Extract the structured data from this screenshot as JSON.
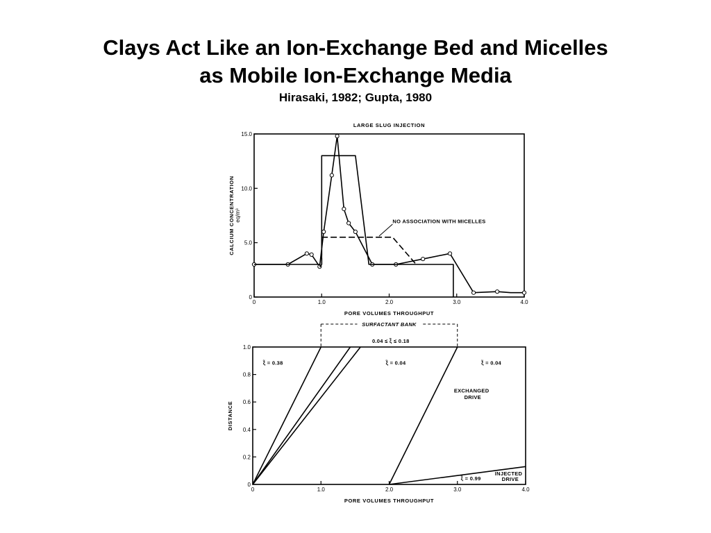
{
  "slide": {
    "title_line1": "Clays Act Like an Ion-Exchange Bed and Micelles",
    "title_line2": "as Mobile Ion-Exchange Media",
    "citation": "Hirasaki, 1982; Gupta, 1980"
  },
  "chart_data": [
    {
      "type": "line",
      "title": "LARGE SLUG INJECTION",
      "xlabel": "PORE VOLUMES THROUGHPUT",
      "ylabel": "CALCIUM CONCENTRATION",
      "yunit": "eq/m³",
      "xlim": [
        0,
        4.0
      ],
      "ylim": [
        0,
        15.0
      ],
      "xticks": [
        0,
        1.0,
        2.0,
        3.0,
        4.0
      ],
      "xtick_labels": [
        "0",
        "1.0",
        "2.0",
        "3.0",
        "4.0"
      ],
      "yticks": [
        0,
        5.0,
        10.0,
        15.0
      ],
      "ytick_labels": [
        "0",
        "5.0",
        "10.0",
        "15.0"
      ],
      "grid": false,
      "series": [
        {
          "style": "solid-markers",
          "x": [
            0,
            0.5,
            0.78,
            0.85,
            0.97,
            1.03,
            1.15,
            1.23,
            1.33,
            1.4,
            1.5,
            1.75,
            2.1,
            2.5,
            2.9,
            3.25,
            3.6,
            3.8,
            4.0
          ],
          "y": [
            3.0,
            3.0,
            4.0,
            3.9,
            2.8,
            6.0,
            11.2,
            14.8,
            8.1,
            6.8,
            6.0,
            3.0,
            3.0,
            3.5,
            4.0,
            0.4,
            0.5,
            0.4,
            0.4
          ],
          "markers": [
            true,
            true,
            true,
            true,
            true,
            true,
            true,
            true,
            true,
            true,
            true,
            true,
            true,
            true,
            true,
            true,
            true,
            false,
            true
          ]
        },
        {
          "style": "solid",
          "x": [
            0,
            0.97,
            0.98,
            1.0,
            1.0,
            1.5,
            1.7,
            2.0,
            2.95,
            2.95
          ],
          "y": [
            3.0,
            3.0,
            2.8,
            3.0,
            13.0,
            13.0,
            3.0,
            3.0,
            3.0,
            0
          ]
        },
        {
          "name": "NO ASSOCIATION WITH MICELLES",
          "style": "dashed",
          "x": [
            1.0,
            1.0,
            1.95,
            2.05,
            2.4
          ],
          "y": [
            3.0,
            5.5,
            5.5,
            5.5,
            3.0
          ]
        }
      ],
      "annotations": [
        {
          "text": "NO ASSOCIATION WITH MICELLES",
          "x": 2.05,
          "y": 6.8
        }
      ]
    },
    {
      "type": "line",
      "title": "",
      "xlabel": "PORE VOLUMES THROUGHPUT",
      "ylabel": "DISTANCE",
      "xlim": [
        0,
        4.0
      ],
      "ylim": [
        0,
        1.0
      ],
      "xticks": [
        0,
        1.0,
        2.0,
        3.0,
        4.0
      ],
      "xtick_labels": [
        "0",
        "1.0",
        "2.0",
        "3.0",
        "4.0"
      ],
      "yticks": [
        0,
        0.2,
        0.4,
        0.6,
        0.8,
        1.0
      ],
      "ytick_labels": [
        "0",
        "0.2",
        "0.4",
        "0.6",
        "0.8",
        "1.0"
      ],
      "grid": false,
      "series": [
        {
          "style": "solid",
          "x": [
            0,
            1.0
          ],
          "y": [
            0,
            1.0
          ]
        },
        {
          "style": "solid",
          "x": [
            0,
            1.43
          ],
          "y": [
            0,
            1.0
          ]
        },
        {
          "style": "solid",
          "x": [
            0,
            1.58
          ],
          "y": [
            0,
            1.0
          ]
        },
        {
          "style": "solid",
          "x": [
            2.0,
            3.0
          ],
          "y": [
            0,
            1.0
          ]
        },
        {
          "style": "solid",
          "x": [
            2.0,
            4.0
          ],
          "y": [
            0,
            0.13
          ]
        }
      ],
      "bracket": {
        "label": "SURFACTANT BANK",
        "x_start": 1.0,
        "x_end": 3.0
      },
      "annotations": [
        {
          "text": "ξ̃ = 0.38",
          "x": 0.15,
          "y": 0.87
        },
        {
          "text": "0.04 ≤ ξ̃ ≤ 0.18",
          "x": 1.75,
          "y": 1.03
        },
        {
          "text": "ξ̃ = 0.04",
          "x": 1.95,
          "y": 0.87
        },
        {
          "text": "ξ̃ = 0.04",
          "x": 3.35,
          "y": 0.87
        },
        {
          "text": "EXCHANGED",
          "x": 2.95,
          "y": 0.67
        },
        {
          "text": "DRIVE",
          "x": 3.1,
          "y": 0.62
        },
        {
          "text": "INJECTED",
          "x": 3.55,
          "y": 0.065
        },
        {
          "text": "DRIVE",
          "x": 3.65,
          "y": 0.025
        },
        {
          "text": "ξ̃ = 0.99",
          "x": 3.05,
          "y": 0.03
        }
      ]
    }
  ]
}
